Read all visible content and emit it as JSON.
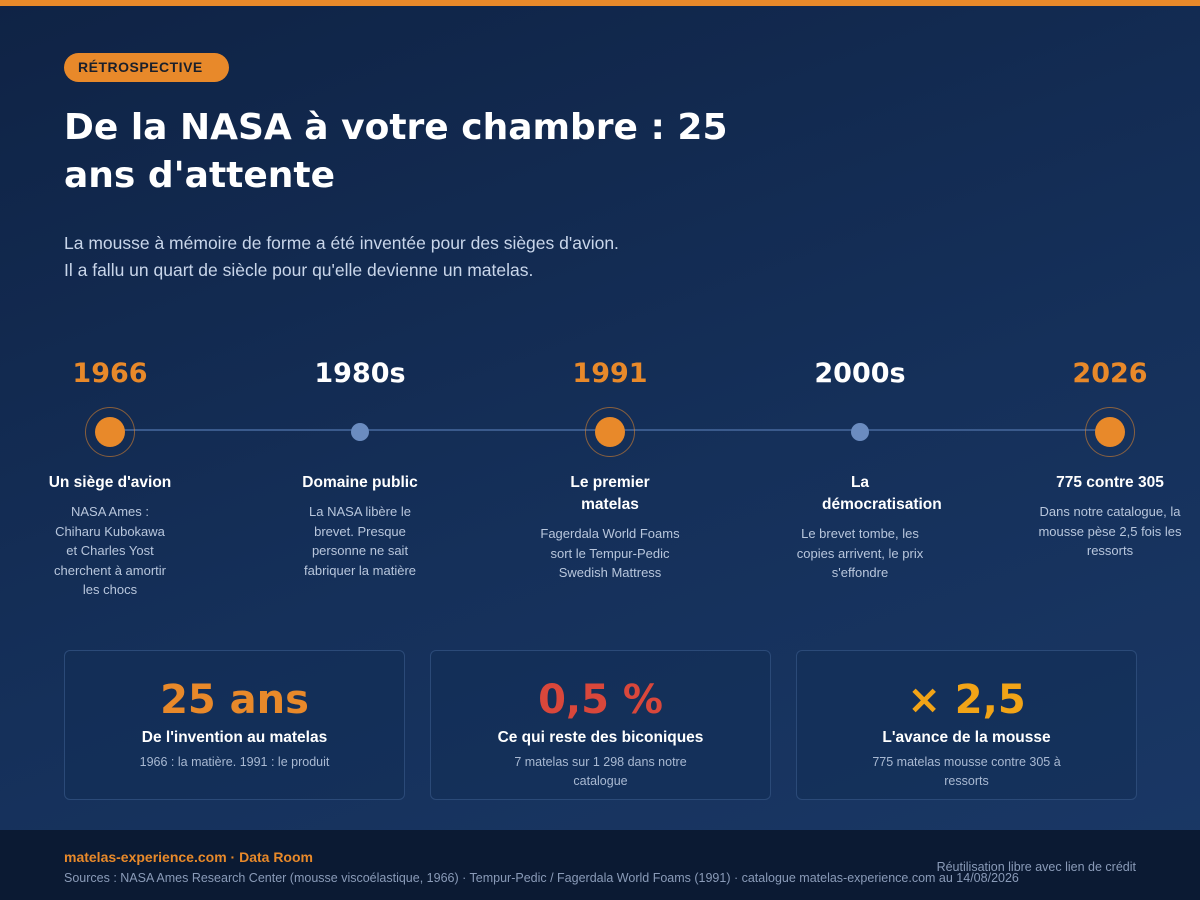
{
  "badge": "RÉTROSPECTIVE",
  "title": "De la NASA à votre chambre : 25 ans d'attente",
  "subtitle": [
    "La mousse à mémoire de forme a été inventée pour des sièges d'avion.",
    "Il a fallu un quart de siècle pour qu'elle devienne un matelas."
  ],
  "timeline": [
    {
      "year": "1966",
      "title": "Un siège d'avion",
      "desc": "NASA Ames : Chiharu Kubokawa et Charles Yost cherchent à amortir les chocs",
      "highlight": true
    },
    {
      "year": "1980s",
      "title": "Domaine public",
      "desc": "La NASA libère le brevet. Presque personne ne sait fabriquer la matière",
      "highlight": false
    },
    {
      "year": "1991",
      "title": "Le premier matelas",
      "desc": "Fagerdala World Foams sort le Tempur-Pedic Swedish Mattress",
      "highlight": true
    },
    {
      "year": "2000s",
      "title": "La démocratisation",
      "desc": "Le brevet tombe, les copies arrivent, le prix s'effondre",
      "highlight": false
    },
    {
      "year": "2026",
      "title": "775 contre 305",
      "desc": "Dans notre catalogue, la mousse pèse 2,5 fois les ressorts",
      "highlight": true
    }
  ],
  "stats": [
    {
      "value": "25 ans",
      "label": "De l'invention au matelas",
      "desc": "1966 : la matière. 1991 : le produit",
      "color": "#e8892a"
    },
    {
      "value": "0,5 %",
      "label": "Ce qui reste des biconiques",
      "desc": "7 matelas sur 1 298 dans notre catalogue",
      "color": "#d9473b"
    },
    {
      "value": "× 2,5",
      "label": "L'avance de la mousse",
      "desc": "775 matelas mousse contre 305 à ressorts",
      "color": "#f2a417"
    }
  ],
  "footer": {
    "brand": "matelas-experience.com · Data Room",
    "license": "Réutilisation libre avec lien de crédit",
    "sources": "Sources : NASA Ames Research Center (mousse viscoélastique, 1966) · Tempur-Pedic / Fagerdala World Foams (1991) · catalogue matelas-experience.com au 14/08/2026"
  },
  "colors": {
    "accent": "#e8892a",
    "background": "#15305a",
    "node_muted": "#6b8cc0"
  }
}
